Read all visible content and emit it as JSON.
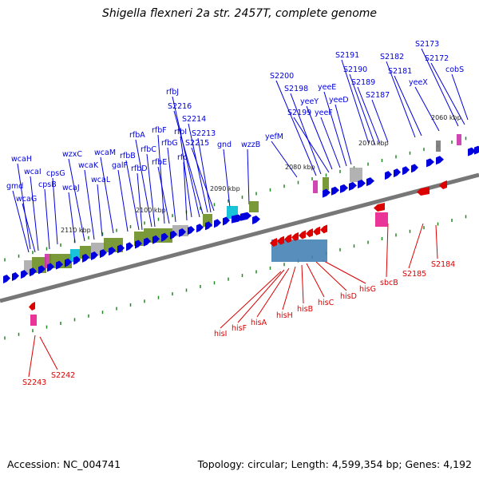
{
  "title": "Shigella flexneri 2a str. 2457T, complete genome",
  "footer": {
    "accession_label": "Accession:",
    "accession": "NC_004741",
    "topology_text": "Topology: circular; Length: 4,599,354 bp; Genes: 4,192"
  },
  "colors": {
    "forward_gene": "#0000dd",
    "reverse_gene": "#dd0000",
    "backbone": "#777777",
    "tick": "#228822"
  },
  "scale_labels": [
    "2110 kbp",
    "2100 kbp",
    "2090 kbp",
    "2080 kbp",
    "2070 kbp",
    "2060 kbp"
  ],
  "forward_labels": [
    "wcaH",
    "wcaI",
    "gmd",
    "wcaG",
    "cpsB",
    "cpsG",
    "wcaJ",
    "wzxC",
    "wcaK",
    "wcaL",
    "wcaM",
    "galF",
    "rfbD",
    "rfbB",
    "rfbA",
    "rfbC",
    "rfbF",
    "rfbE",
    "rfbG",
    "rfc",
    "rfbI",
    "rfbJ",
    "S2216",
    "S2214",
    "S2213",
    "S2215",
    "gnd",
    "wzzB",
    "yefM",
    "S2200",
    "S2198",
    "S2199",
    "yeeY",
    "yeeF",
    "yeeE",
    "yeeD",
    "S2191",
    "S2190",
    "S2189",
    "S2187",
    "S2182",
    "S2181",
    "yeeX",
    "S2173",
    "S2172",
    "cobS"
  ],
  "reverse_labels": [
    "hisI",
    "hisF",
    "hisA",
    "hisH",
    "hisB",
    "hisC",
    "hisD",
    "hisG",
    "sbcB",
    "S2185",
    "S2184",
    "S2243",
    "S2242"
  ]
}
